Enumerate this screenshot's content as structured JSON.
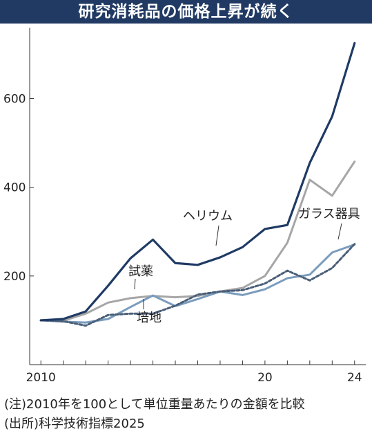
{
  "title": "研究消耗品の価格上昇が続く",
  "notes": {
    "note": "(注)2010年を100として単位重量あたりの金額を比較",
    "source": "(出所)科学技術指標2025"
  },
  "chart_data": {
    "type": "line",
    "title": "研究消耗品の価格上昇が続く",
    "xlabel": "",
    "ylabel": "",
    "x": [
      2010,
      2011,
      2012,
      2013,
      2014,
      2015,
      2016,
      2017,
      2018,
      2019,
      2020,
      2021,
      2022,
      2023,
      2024
    ],
    "x_tick_labels": [
      {
        "x": 2010,
        "label": "2010"
      },
      {
        "x": 2020,
        "label": "20"
      },
      {
        "x": 2024,
        "label": "24"
      }
    ],
    "ylim": [
      0,
      760
    ],
    "xlim": [
      2009.5,
      2024.5
    ],
    "y_ticks": [
      200,
      400,
      600
    ],
    "grid": false,
    "legend": "none (labels drawn next to lines)",
    "series": [
      {
        "name": "ヘリウム",
        "color": "#1f3a64",
        "dash": "solid",
        "values": [
          100,
          103,
          120,
          178,
          240,
          282,
          229,
          225,
          242,
          265,
          306,
          315,
          455,
          560,
          725
        ]
      },
      {
        "name": "ガラス器具",
        "color": "#a6a6a6",
        "dash": "solid",
        "values": [
          100,
          99,
          115,
          140,
          150,
          155,
          152,
          155,
          165,
          173,
          200,
          275,
          417,
          381,
          458
        ]
      },
      {
        "name": "試薬",
        "color": "#7a9cbd",
        "dash": "solid",
        "values": [
          100,
          97,
          95,
          103,
          130,
          156,
          132,
          148,
          165,
          157,
          170,
          195,
          203,
          253,
          271
        ]
      },
      {
        "name": "培地",
        "color": "#4a5e78",
        "dash": "dotted",
        "values": [
          100,
          98,
          88,
          112,
          115,
          115,
          133,
          158,
          165,
          168,
          183,
          212,
          190,
          218,
          272
        ]
      }
    ]
  }
}
